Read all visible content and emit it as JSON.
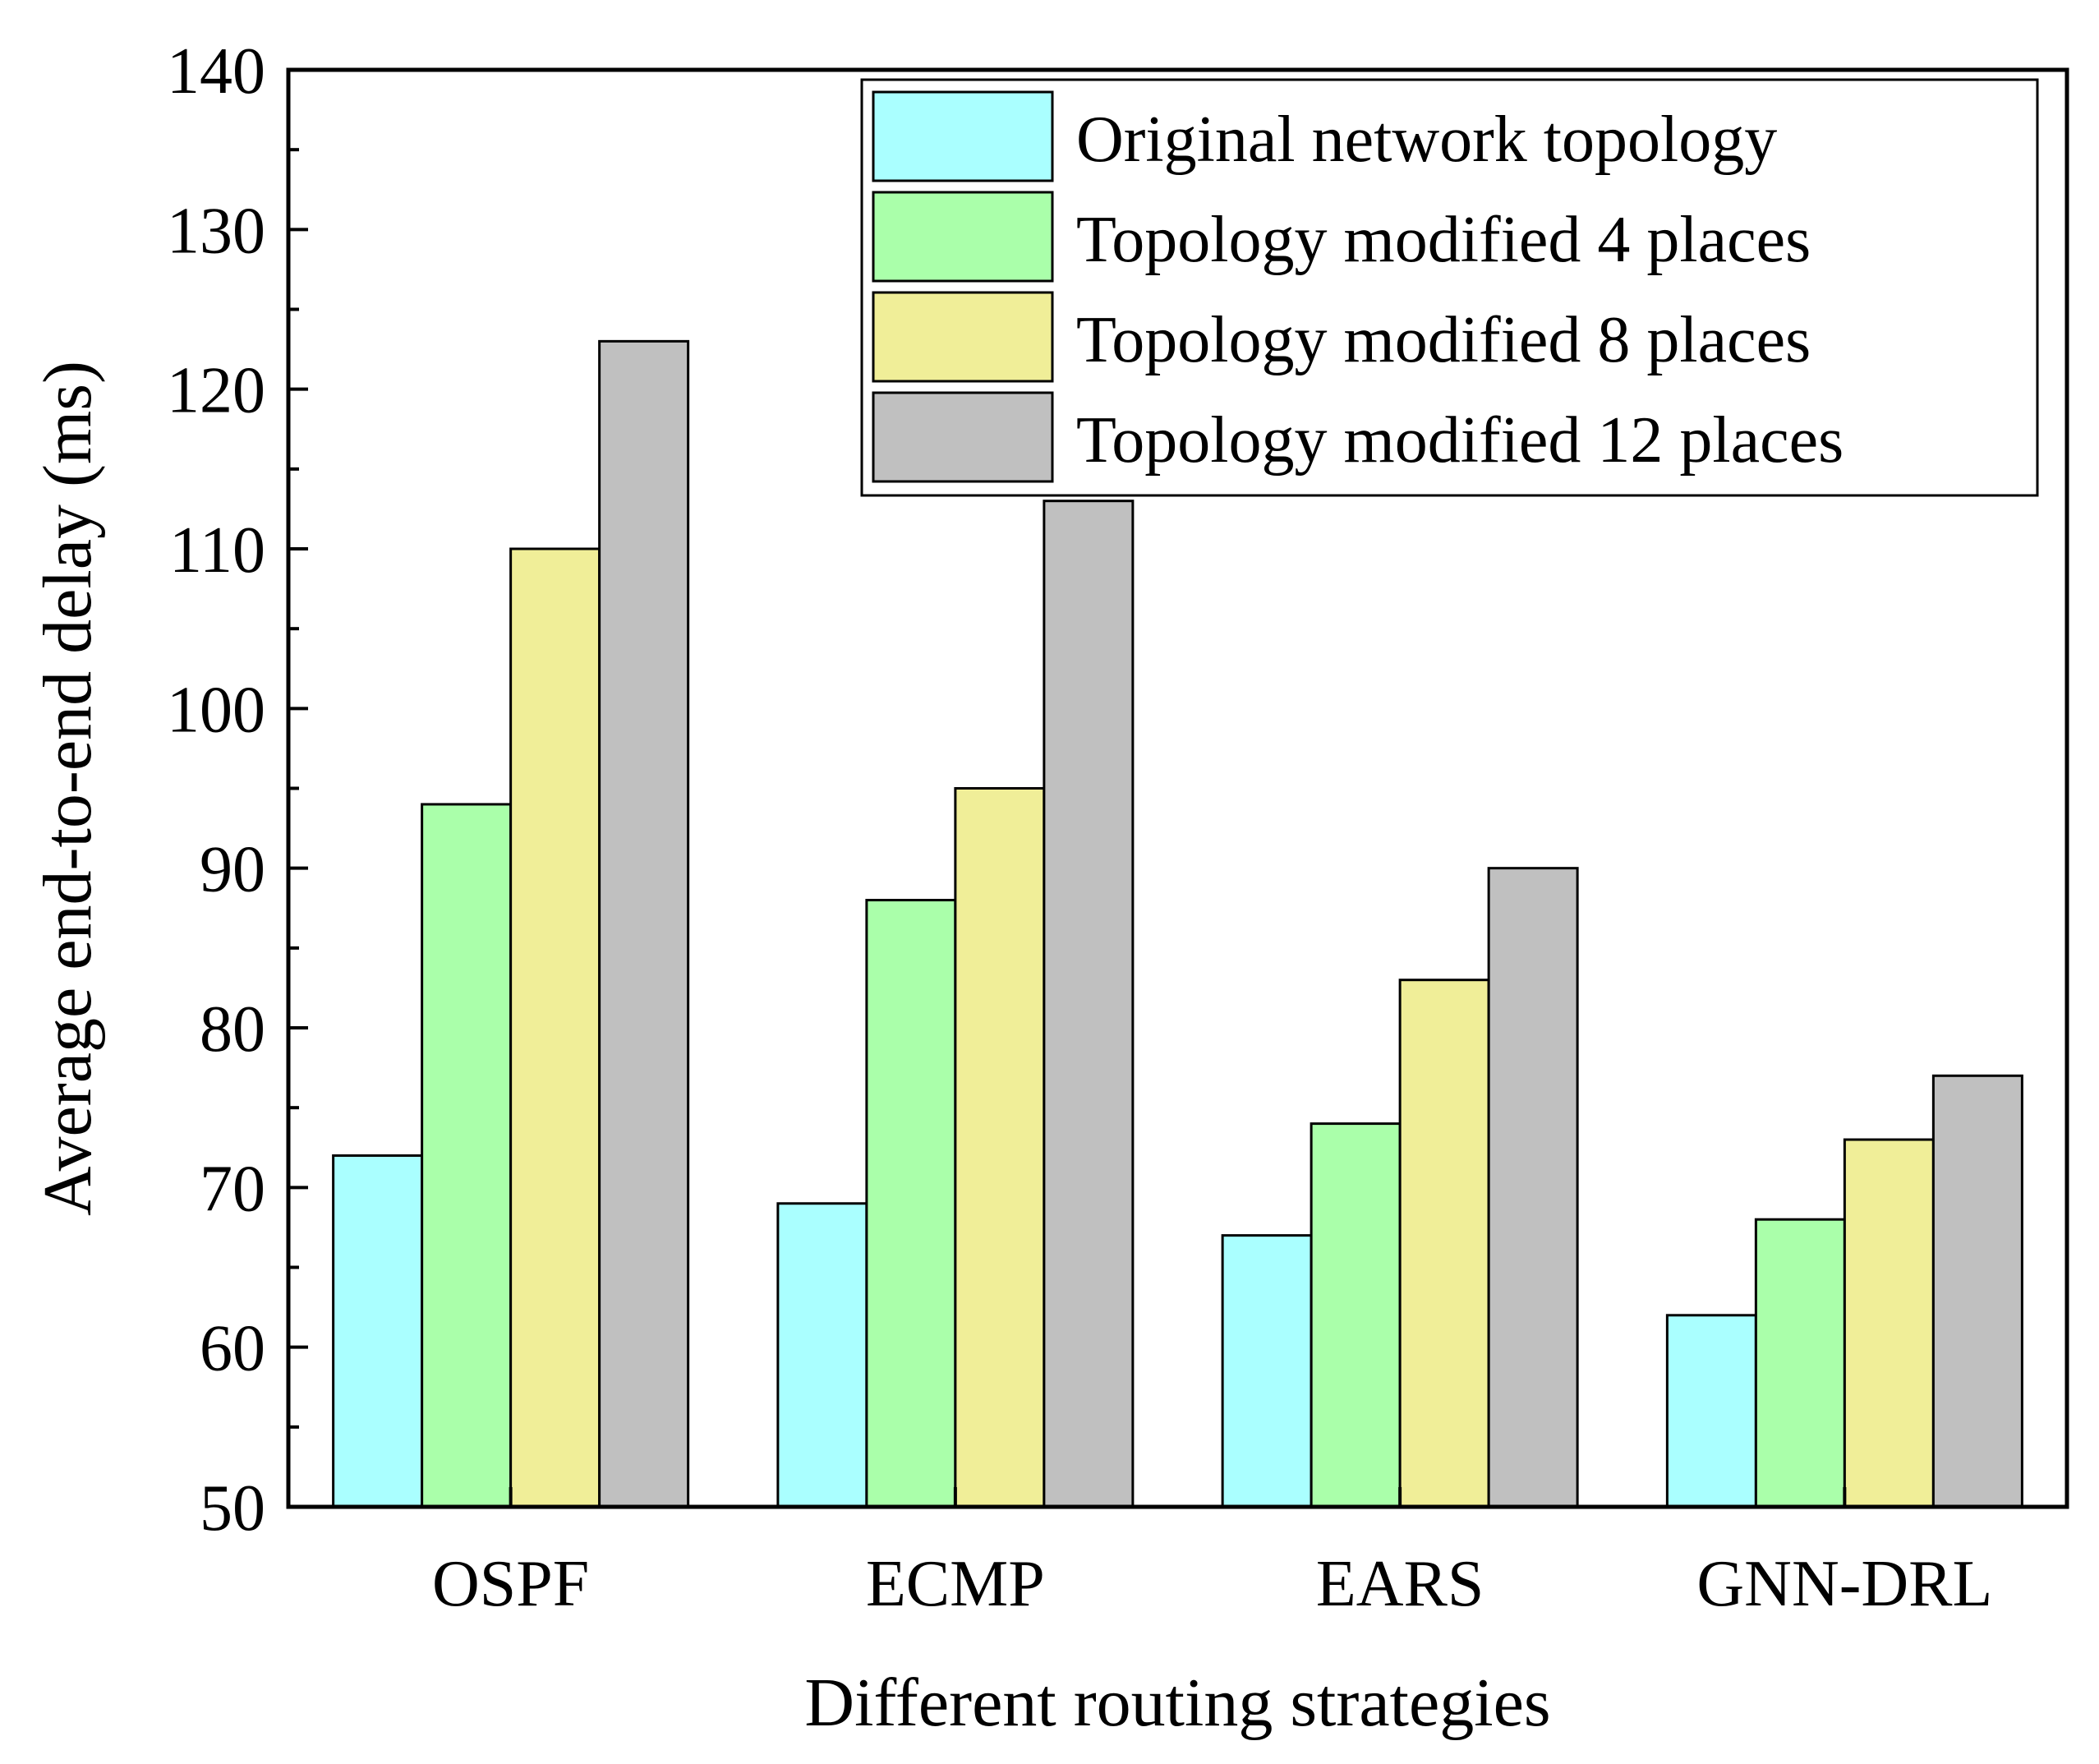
{
  "chart_data": {
    "type": "bar",
    "title": "",
    "xlabel": "Different routing strategies",
    "ylabel": "Average end-to-end delay (ms)",
    "ylim": [
      50,
      140
    ],
    "yticks": [
      50,
      60,
      70,
      80,
      90,
      100,
      110,
      120,
      130,
      140
    ],
    "yticks_text": [
      "50",
      "60",
      "70",
      "80",
      "90",
      "100",
      "110",
      "120",
      "130",
      "140"
    ],
    "grid": false,
    "legend_position": "top-right",
    "categories": [
      "OSPF",
      "ECMP",
      "EARS",
      "GNN-DRL"
    ],
    "series": [
      {
        "name": "Original network topology",
        "color": "#aaffff",
        "values": [
          72,
          69,
          67,
          62
        ]
      },
      {
        "name": "Topology modified 4 places",
        "color": "#aaffaa",
        "values": [
          94,
          88,
          74,
          68
        ]
      },
      {
        "name": "Topology modified 8 places",
        "color": "#f0ee98",
        "values": [
          110,
          95,
          83,
          73
        ]
      },
      {
        "name": "Topology modified 12 places",
        "color": "#c0c0c0",
        "values": [
          123,
          113,
          90,
          77
        ]
      }
    ]
  }
}
